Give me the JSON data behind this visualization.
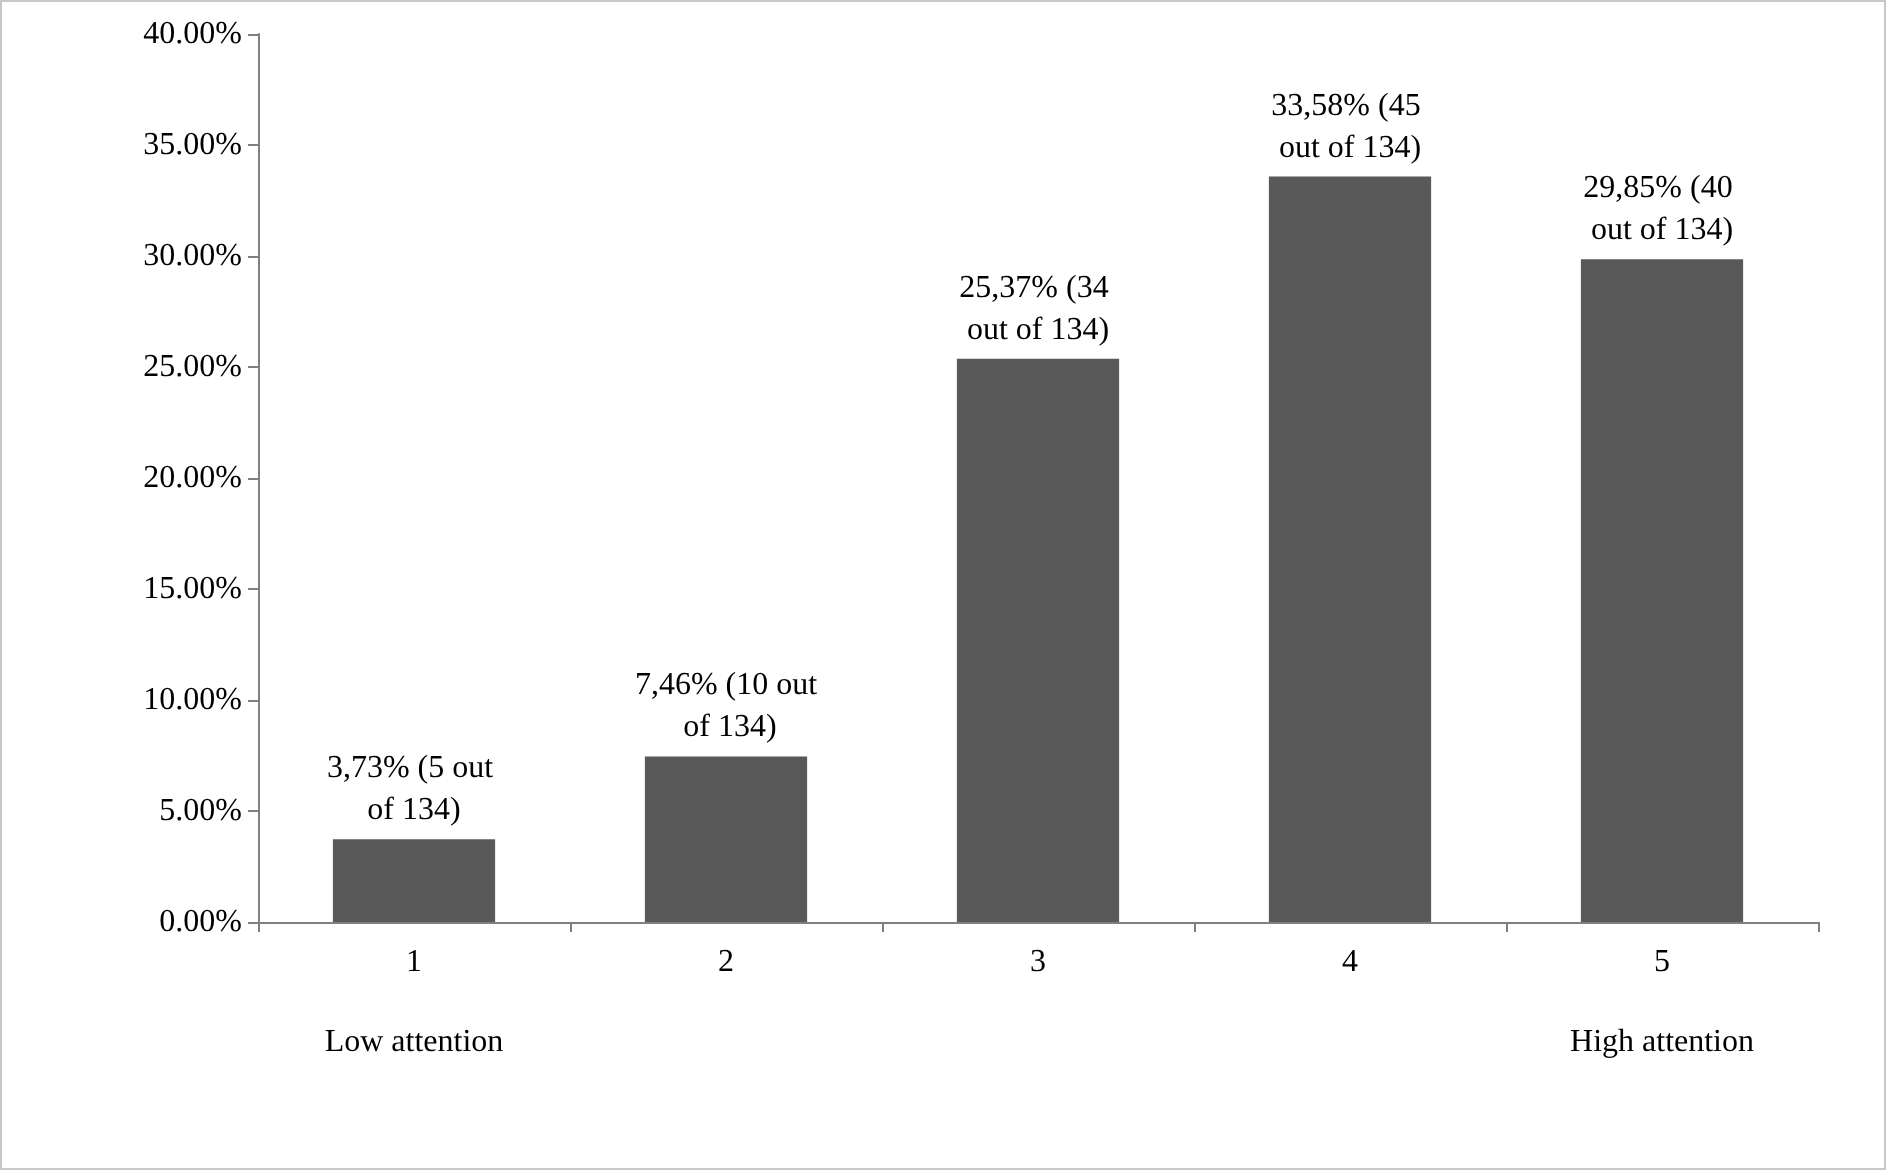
{
  "chart_data": {
    "type": "bar",
    "categories": [
      "1\n\nLow attention",
      "2",
      "3",
      "4",
      "5\n\nHigh attention"
    ],
    "values": [
      3.73,
      7.46,
      25.37,
      33.58,
      29.85
    ],
    "color": "#595959",
    "value_labels": [
      "3,73% (5 out of 134)",
      "7,46% (10 out of 134)",
      "25,37% (34 out of 134)",
      "33,58% (45 out of 134)",
      "29,85% (40 out of 134)"
    ],
    "ylim": [
      0,
      40
    ],
    "yticks": [
      {
        "value": 0,
        "label": "0.00%"
      },
      {
        "value": 5,
        "label": "5.00%"
      },
      {
        "value": 10,
        "label": "10.00%"
      },
      {
        "value": 15,
        "label": "15.00%"
      },
      {
        "value": 20,
        "label": "20.00%"
      },
      {
        "value": 25,
        "label": "25.00%"
      },
      {
        "value": 30,
        "label": "30.00%"
      },
      {
        "value": 35,
        "label": "35.00%"
      },
      {
        "value": 40,
        "label": "40.00%"
      }
    ],
    "grid": false
  }
}
